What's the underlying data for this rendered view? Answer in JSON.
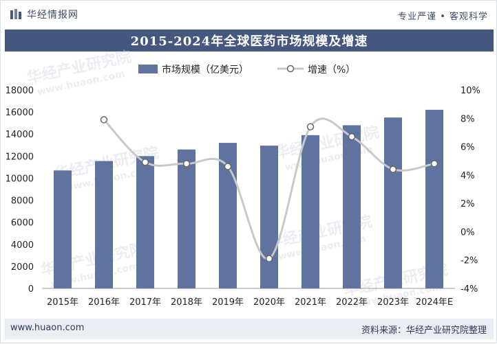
{
  "header": {
    "brand_name": "华经情报网",
    "slogan": "专业严谨 • 客观科学"
  },
  "footer": {
    "url": "www.huaon.com",
    "source": "资料来源：华经产业研究院整理"
  },
  "watermark": {
    "text_cn": "华经产业研究院",
    "text_en": "www.huaon.com"
  },
  "colors": {
    "bar": "#5f739e",
    "line": "#c8c8c8",
    "title_band": "#46577f"
  },
  "chart_data": {
    "type": "bar",
    "title": "2015-2024年全球医药市场规模及增速",
    "categories": [
      "2015年",
      "2016年",
      "2017年",
      "2018年",
      "2019年",
      "2020年",
      "2021年",
      "2022年",
      "2023年",
      "2024年E"
    ],
    "series": [
      {
        "name": "市场规模（亿美元）",
        "type": "bar",
        "axis": "left",
        "values": [
          10700,
          11550,
          12000,
          12600,
          13200,
          12950,
          13900,
          14800,
          15500,
          16200
        ]
      },
      {
        "name": "增速（%）",
        "type": "line",
        "axis": "right",
        "values": [
          null,
          7.9,
          4.9,
          4.8,
          4.6,
          -1.9,
          7.4,
          6.7,
          4.4,
          4.8
        ]
      }
    ],
    "left_axis": {
      "min": 0,
      "max": 18000,
      "step": 2000,
      "ticks": [
        "0",
        "2000",
        "4000",
        "6000",
        "8000",
        "10000",
        "12000",
        "14000",
        "16000",
        "18000"
      ]
    },
    "right_axis": {
      "min": -4,
      "max": 10,
      "step": 2,
      "ticks": [
        "-4%",
        "-2%",
        "0%",
        "2%",
        "4%",
        "6%",
        "8%",
        "10%"
      ]
    },
    "legend_position": "top-center"
  }
}
